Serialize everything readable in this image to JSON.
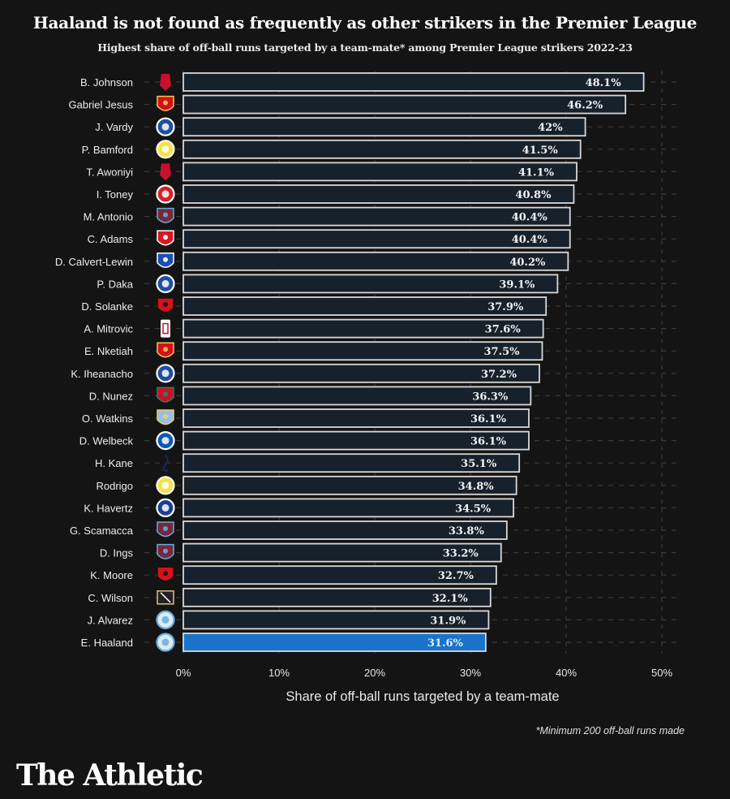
{
  "chart_data": {
    "type": "bar",
    "orientation": "horizontal",
    "title": "Haaland is not found as frequently as other strikers in the Premier League",
    "subtitle": "Highest share of off-ball runs targeted by a team-mate* among Premier League strikers 2022-23",
    "xlabel": "Share of off-ball runs targeted by a team-mate",
    "ylabel": "",
    "xlim": [
      0,
      50
    ],
    "x_ticks": [
      "0%",
      "10%",
      "20%",
      "30%",
      "40%",
      "50%"
    ],
    "x_tick_values": [
      0,
      10,
      20,
      30,
      40,
      50
    ],
    "grid": true,
    "categories": [
      "B. Johnson",
      "Gabriel Jesus",
      "J. Vardy",
      "P. Bamford",
      "T. Awoniyi",
      "I. Toney",
      "M. Antonio",
      "C. Adams",
      "D. Calvert-Lewin",
      "P. Daka",
      "D. Solanke",
      "A. Mitrovic",
      "E. Nketiah",
      "K. Iheanacho",
      "D. Nunez",
      "O. Watkins",
      "D. Welbeck",
      "H. Kane",
      "Rodrigo",
      "K. Havertz",
      "G. Scamacca",
      "D. Ings",
      "K. Moore",
      "C. Wilson",
      "J. Alvarez",
      "E. Haaland"
    ],
    "clubs": [
      "nottingham-forest",
      "arsenal",
      "leicester",
      "leeds",
      "nottingham-forest",
      "brentford",
      "west-ham",
      "southampton",
      "everton",
      "leicester",
      "bournemouth",
      "fulham",
      "arsenal",
      "leicester",
      "liverpool",
      "aston-villa",
      "brighton",
      "tottenham",
      "leeds",
      "chelsea",
      "west-ham",
      "west-ham",
      "bournemouth",
      "newcastle",
      "man-city",
      "man-city"
    ],
    "values": [
      48.1,
      46.2,
      42,
      41.5,
      41.1,
      40.8,
      40.4,
      40.4,
      40.2,
      39.1,
      37.9,
      37.6,
      37.5,
      37.2,
      36.3,
      36.1,
      36.1,
      35.1,
      34.8,
      34.5,
      33.8,
      33.2,
      32.7,
      32.1,
      31.9,
      31.6
    ],
    "labels": [
      "48.1%",
      "46.2%",
      "42%",
      "41.5%",
      "41.1%",
      "40.8%",
      "40.4%",
      "40.4%",
      "40.2%",
      "39.1%",
      "37.9%",
      "37.6%",
      "37.5%",
      "37.2%",
      "36.3%",
      "36.1%",
      "36.1%",
      "35.1%",
      "34.8%",
      "34.5%",
      "33.8%",
      "33.2%",
      "32.7%",
      "32.1%",
      "31.9%",
      "31.6%"
    ],
    "highlight": "E. Haaland",
    "colors": {
      "bar": "#17212c",
      "bar_outline": "#d8d8d8",
      "highlight": "#1a73c8",
      "background": "#141414",
      "grid": "#3a3a3a"
    }
  },
  "club_colors": {
    "nottingham-forest": [
      "#c8102e",
      "#8a0b1e"
    ],
    "arsenal": [
      "#d50f1a",
      "#f2c94c"
    ],
    "leicester": [
      "#1f4fa0",
      "#ffffff"
    ],
    "leeds": [
      "#f3e34a",
      "#ffffff"
    ],
    "brentford": [
      "#d6212b",
      "#ffffff"
    ],
    "west-ham": [
      "#7a263a",
      "#5ab0e0"
    ],
    "southampton": [
      "#d71920",
      "#ffffff"
    ],
    "everton": [
      "#1b4fb5",
      "#ffffff"
    ],
    "bournemouth": [
      "#d5121c",
      "#111111"
    ],
    "fulham": [
      "#ffffff",
      "#c8102e"
    ],
    "liverpool": [
      "#c8102e",
      "#1f8a5a"
    ],
    "aston-villa": [
      "#95bfe5",
      "#f0d060"
    ],
    "brighton": [
      "#0d5ab5",
      "#ffffff"
    ],
    "tottenham": [
      "#1a2550",
      "#ffffff"
    ],
    "chelsea": [
      "#1b3f94",
      "#ffffff"
    ],
    "newcastle": [
      "#222222",
      "#d9c07a"
    ],
    "man-city": [
      "#d9ecf8",
      "#6cabdd"
    ]
  },
  "footnote": "*Minimum 200 off-ball runs made",
  "brand": "The Athletic"
}
